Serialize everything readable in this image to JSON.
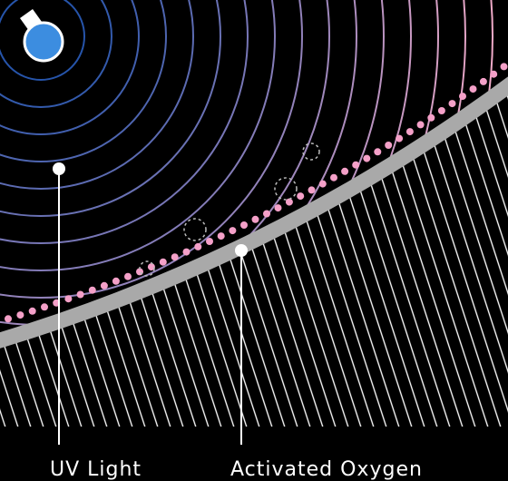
{
  "callouts": [
    {
      "label": "UV Light"
    },
    {
      "label": "Activated Oxygen"
    }
  ]
}
